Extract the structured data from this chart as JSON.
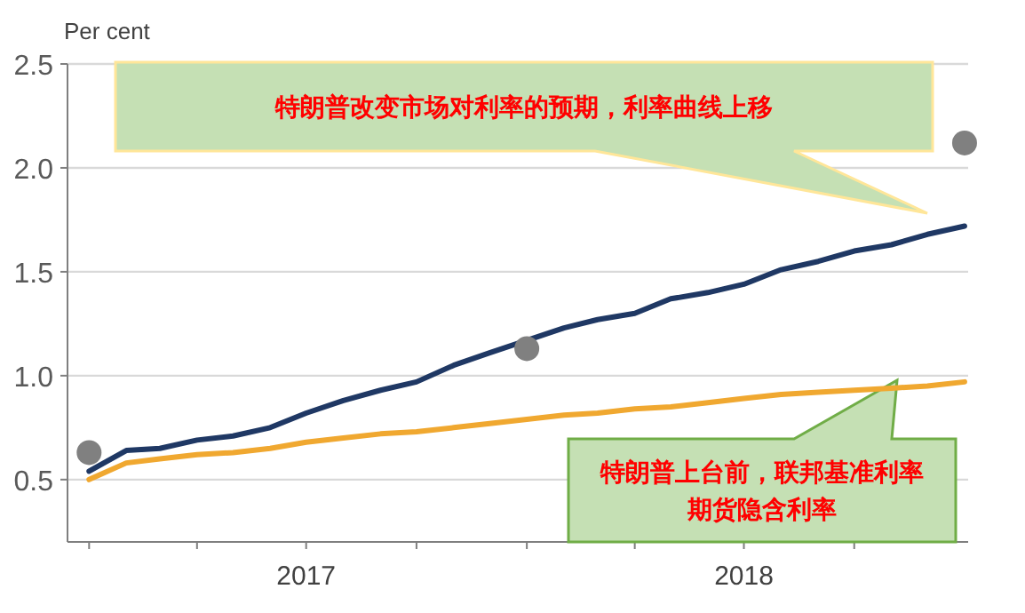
{
  "chart_data": {
    "type": "line",
    "ylabel": "Per cent",
    "x": [
      "2017-01",
      "2017-02",
      "2017-03",
      "2017-04",
      "2017-05",
      "2017-06",
      "2017-07",
      "2017-08",
      "2017-09",
      "2017-10",
      "2017-11",
      "2017-12",
      "2018-01",
      "2018-02",
      "2018-03",
      "2018-04",
      "2018-05",
      "2018-06",
      "2018-07",
      "2018-08",
      "2018-09",
      "2018-10",
      "2018-11",
      "2018-12",
      "2019-01"
    ],
    "series": [
      {
        "color": "#1f3864",
        "values": [
          0.54,
          0.64,
          0.65,
          0.69,
          0.71,
          0.75,
          0.82,
          0.88,
          0.93,
          0.97,
          1.05,
          1.11,
          1.17,
          1.23,
          1.27,
          1.3,
          1.37,
          1.4,
          1.44,
          1.51,
          1.55,
          1.6,
          1.63,
          1.68,
          1.72
        ]
      },
      {
        "color": "#f0a830",
        "values": [
          0.5,
          0.58,
          0.6,
          0.62,
          0.63,
          0.65,
          0.68,
          0.7,
          0.72,
          0.73,
          0.75,
          0.77,
          0.79,
          0.81,
          0.82,
          0.84,
          0.85,
          0.87,
          0.89,
          0.91,
          0.92,
          0.93,
          0.94,
          0.95,
          0.97
        ]
      },
      {
        "type": "scatter",
        "color": "#808080",
        "x": [
          "2017-01",
          "2018-01",
          "2019-01"
        ],
        "values": [
          0.63,
          1.13,
          2.12
        ]
      }
    ],
    "xlim": [
      "2016-12-14",
      "2019-01-04"
    ],
    "xticks": [
      {
        "value": "2017-01",
        "label": null
      },
      {
        "value": "2017-04",
        "label": null
      },
      {
        "value": "2017-07",
        "label": "2017"
      },
      {
        "value": "2017-10",
        "label": null
      },
      {
        "value": "2018-01",
        "label": null
      },
      {
        "value": "2018-04",
        "label": null
      },
      {
        "value": "2018-07",
        "label": "2018"
      },
      {
        "value": "2018-10",
        "label": null
      }
    ],
    "ylim": [
      0.2,
      2.5
    ],
    "yticks": [
      0.5,
      {
        "value": 1,
        "label": "1.0"
      },
      1.5,
      {
        "value": 2,
        "label": "2.0"
      },
      2.5
    ],
    "grid": "y",
    "annotations": [
      "特朗普改变市场对利率的预期，利率曲线上移",
      "特朗普上台前，联邦基准利率期货隐含利率"
    ]
  }
}
